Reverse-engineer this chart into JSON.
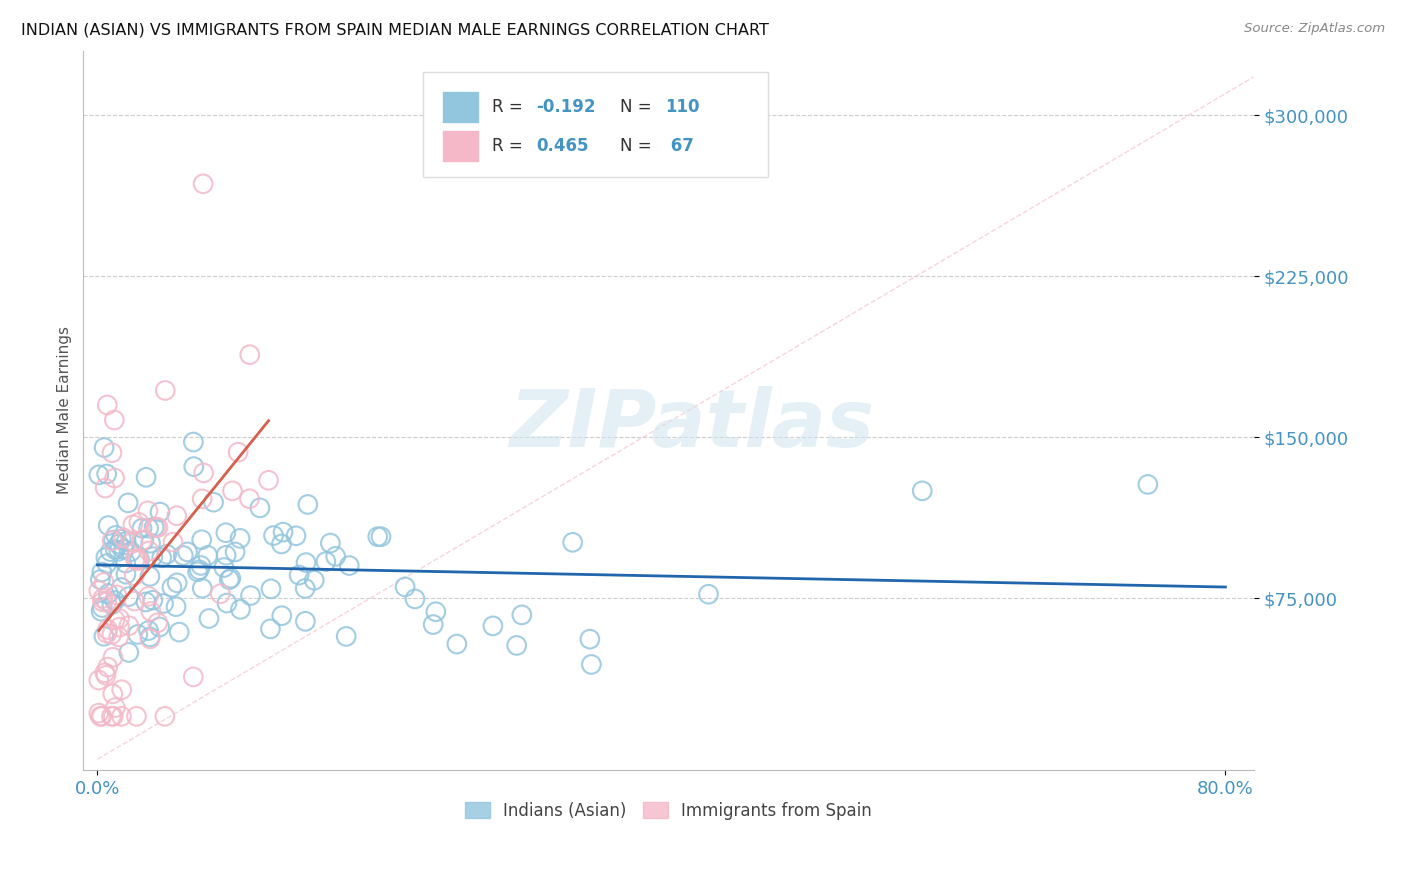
{
  "title": "INDIAN (ASIAN) VS IMMIGRANTS FROM SPAIN MEDIAN MALE EARNINGS CORRELATION CHART",
  "source_text": "Source: ZipAtlas.com",
  "ylabel": "Median Male Earnings",
  "yticks": [
    75000,
    150000,
    225000,
    300000
  ],
  "ytick_labels": [
    "$75,000",
    "$150,000",
    "$225,000",
    "$300,000"
  ],
  "xlim": [
    -0.01,
    0.82
  ],
  "ylim": [
    -5000,
    330000
  ],
  "watermark": "ZIPatlas",
  "color_blue": "#92c5de",
  "color_pink": "#f4b8c8",
  "color_blue_line": "#2166ac",
  "color_pink_line": "#d6604d",
  "color_diag_line": "#f4b8c8",
  "color_grid": "#c8c8c8",
  "color_ytick": "#4393c3",
  "color_xtick": "#4393c3",
  "color_text_label": "#333333",
  "color_text_value": "#4393c3",
  "blue_R": -0.192,
  "blue_N": 110,
  "pink_R": 0.465,
  "pink_N": 67,
  "seed": 42
}
